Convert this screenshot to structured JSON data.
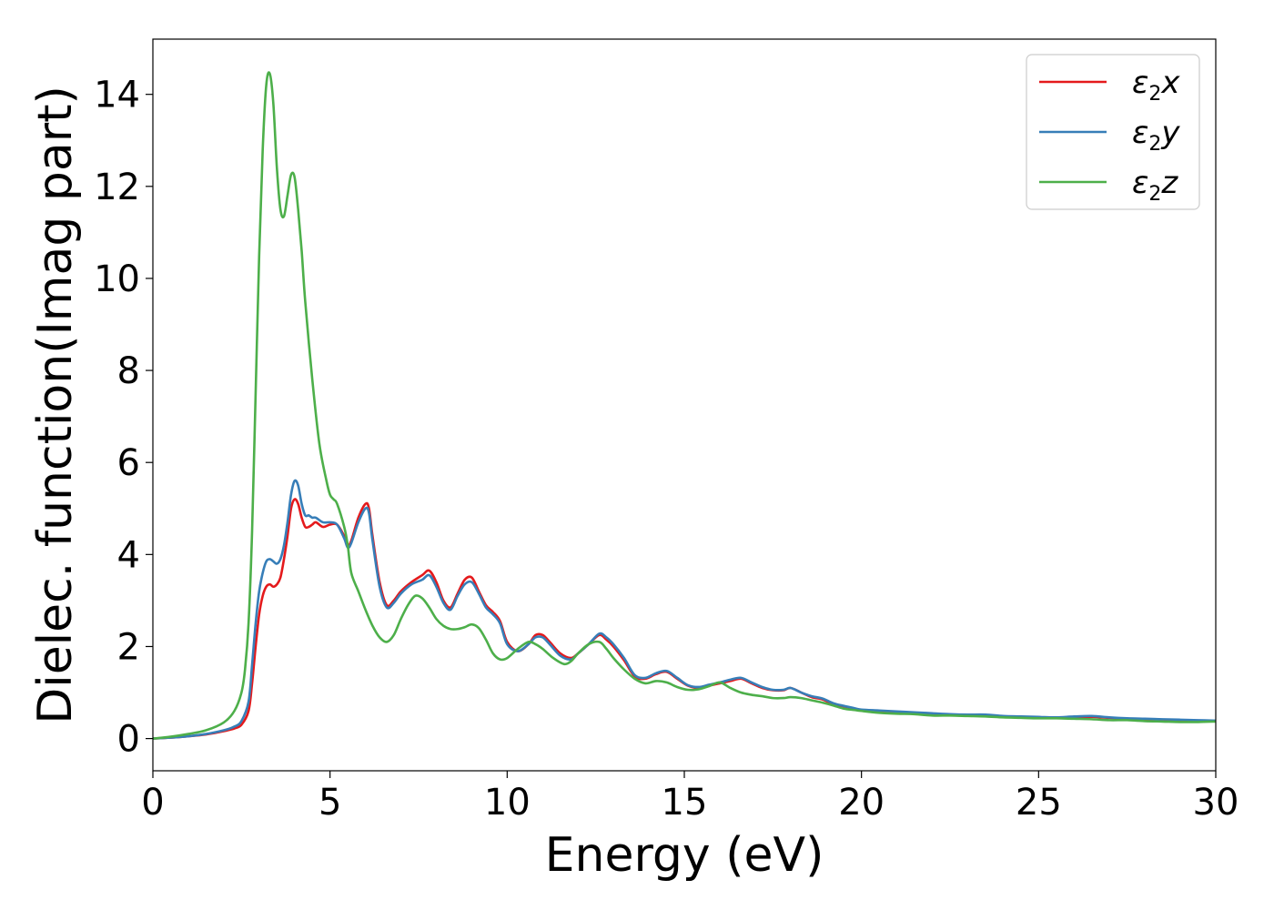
{
  "chart_data": {
    "type": "line",
    "xlabel": "Energy (eV)",
    "ylabel": "Dielec. function(Imag part)",
    "xlim": [
      0,
      30
    ],
    "ylim": [
      -0.7,
      15.2
    ],
    "xticks": [
      0,
      5,
      10,
      15,
      20,
      25,
      30
    ],
    "yticks": [
      0,
      2,
      4,
      6,
      8,
      10,
      12,
      14
    ],
    "grid": false,
    "legend_position": "top-right",
    "series": [
      {
        "name": "ε2x",
        "label_main": "ε",
        "label_sub": "2",
        "label_tail": "x",
        "color": "#e41a1c",
        "x": [
          0,
          0.5,
          1.0,
          1.5,
          2.0,
          2.3,
          2.5,
          2.7,
          2.8,
          2.9,
          3.0,
          3.1,
          3.2,
          3.3,
          3.4,
          3.5,
          3.6,
          3.7,
          3.8,
          3.9,
          4.0,
          4.1,
          4.2,
          4.3,
          4.4,
          4.5,
          4.6,
          4.8,
          5.0,
          5.2,
          5.4,
          5.5,
          5.6,
          5.8,
          6.0,
          6.1,
          6.2,
          6.4,
          6.6,
          6.8,
          7.0,
          7.3,
          7.6,
          7.8,
          8.0,
          8.2,
          8.4,
          8.6,
          8.8,
          9.0,
          9.2,
          9.4,
          9.6,
          9.8,
          10.0,
          10.3,
          10.6,
          10.8,
          11.0,
          11.2,
          11.5,
          11.8,
          12.0,
          12.3,
          12.6,
          12.8,
          13.0,
          13.3,
          13.6,
          13.9,
          14.2,
          14.5,
          14.8,
          15.1,
          15.4,
          15.7,
          16.0,
          16.3,
          16.6,
          16.9,
          17.2,
          17.5,
          17.8,
          18.0,
          18.3,
          18.6,
          18.9,
          19.2,
          19.5,
          19.8,
          20.0,
          20.5,
          21.0,
          21.5,
          22.0,
          22.5,
          23.0,
          23.5,
          24.0,
          24.5,
          25.0,
          25.5,
          26.0,
          26.5,
          27.0,
          27.5,
          28.0,
          28.5,
          29.0,
          29.5,
          30.0
        ],
        "y": [
          0.0,
          0.02,
          0.05,
          0.09,
          0.16,
          0.22,
          0.3,
          0.6,
          1.2,
          2.0,
          2.7,
          3.1,
          3.3,
          3.35,
          3.3,
          3.35,
          3.5,
          3.9,
          4.4,
          5.0,
          5.2,
          5.1,
          4.8,
          4.6,
          4.6,
          4.65,
          4.7,
          4.6,
          4.65,
          4.65,
          4.4,
          4.2,
          4.3,
          4.8,
          5.1,
          5.0,
          4.4,
          3.4,
          2.9,
          3.0,
          3.2,
          3.4,
          3.55,
          3.65,
          3.4,
          3.0,
          2.85,
          3.15,
          3.45,
          3.5,
          3.2,
          2.9,
          2.75,
          2.55,
          2.1,
          1.9,
          2.05,
          2.25,
          2.25,
          2.1,
          1.85,
          1.75,
          1.85,
          2.05,
          2.25,
          2.15,
          2.0,
          1.7,
          1.35,
          1.3,
          1.4,
          1.45,
          1.3,
          1.15,
          1.1,
          1.15,
          1.2,
          1.25,
          1.3,
          1.2,
          1.1,
          1.05,
          1.05,
          1.1,
          1.0,
          0.9,
          0.85,
          0.75,
          0.7,
          0.65,
          0.62,
          0.6,
          0.58,
          0.56,
          0.54,
          0.52,
          0.5,
          0.5,
          0.48,
          0.47,
          0.46,
          0.45,
          0.46,
          0.47,
          0.45,
          0.43,
          0.42,
          0.41,
          0.4,
          0.39,
          0.38
        ]
      },
      {
        "name": "ε2y",
        "label_main": "ε",
        "label_sub": "2",
        "label_tail": "y",
        "color": "#377eb8",
        "x": [
          0,
          0.5,
          1.0,
          1.5,
          2.0,
          2.3,
          2.5,
          2.7,
          2.8,
          2.9,
          3.0,
          3.1,
          3.2,
          3.3,
          3.4,
          3.5,
          3.6,
          3.7,
          3.8,
          3.9,
          4.0,
          4.1,
          4.2,
          4.3,
          4.4,
          4.5,
          4.6,
          4.8,
          5.0,
          5.2,
          5.4,
          5.5,
          5.6,
          5.8,
          6.0,
          6.1,
          6.2,
          6.4,
          6.6,
          6.8,
          7.0,
          7.3,
          7.6,
          7.8,
          8.0,
          8.2,
          8.4,
          8.6,
          8.8,
          9.0,
          9.2,
          9.4,
          9.6,
          9.8,
          10.0,
          10.3,
          10.6,
          10.8,
          11.0,
          11.2,
          11.5,
          11.8,
          12.0,
          12.3,
          12.6,
          12.8,
          13.0,
          13.3,
          13.6,
          13.9,
          14.2,
          14.5,
          14.8,
          15.1,
          15.4,
          15.7,
          16.0,
          16.3,
          16.6,
          16.9,
          17.2,
          17.5,
          17.8,
          18.0,
          18.3,
          18.6,
          18.9,
          19.2,
          19.5,
          19.8,
          20.0,
          20.5,
          21.0,
          21.5,
          22.0,
          22.5,
          23.0,
          23.5,
          24.0,
          24.5,
          25.0,
          25.5,
          26.0,
          26.5,
          27.0,
          27.5,
          28.0,
          28.5,
          29.0,
          29.5,
          30.0
        ],
        "y": [
          0.0,
          0.02,
          0.05,
          0.1,
          0.18,
          0.26,
          0.38,
          0.8,
          1.6,
          2.5,
          3.2,
          3.6,
          3.85,
          3.9,
          3.85,
          3.8,
          3.9,
          4.2,
          4.7,
          5.3,
          5.6,
          5.5,
          5.1,
          4.85,
          4.85,
          4.8,
          4.8,
          4.7,
          4.7,
          4.65,
          4.35,
          4.15,
          4.25,
          4.7,
          5.0,
          4.9,
          4.3,
          3.3,
          2.85,
          2.95,
          3.15,
          3.35,
          3.45,
          3.55,
          3.3,
          2.95,
          2.8,
          3.1,
          3.35,
          3.4,
          3.15,
          2.85,
          2.7,
          2.5,
          2.05,
          1.9,
          2.05,
          2.2,
          2.2,
          2.05,
          1.8,
          1.72,
          1.85,
          2.05,
          2.28,
          2.2,
          2.05,
          1.75,
          1.38,
          1.32,
          1.42,
          1.47,
          1.32,
          1.16,
          1.12,
          1.17,
          1.22,
          1.28,
          1.32,
          1.22,
          1.12,
          1.06,
          1.06,
          1.1,
          1.0,
          0.92,
          0.87,
          0.77,
          0.71,
          0.66,
          0.63,
          0.61,
          0.59,
          0.57,
          0.55,
          0.53,
          0.52,
          0.52,
          0.49,
          0.48,
          0.47,
          0.46,
          0.48,
          0.49,
          0.46,
          0.44,
          0.43,
          0.42,
          0.41,
          0.4,
          0.39
        ]
      },
      {
        "name": "ε2z",
        "label_main": "ε",
        "label_sub": "2",
        "label_tail": "z",
        "color": "#4daf4a",
        "x": [
          0,
          0.5,
          1.0,
          1.5,
          2.0,
          2.3,
          2.5,
          2.6,
          2.7,
          2.8,
          2.9,
          3.0,
          3.1,
          3.2,
          3.3,
          3.4,
          3.5,
          3.6,
          3.7,
          3.8,
          3.9,
          4.0,
          4.1,
          4.2,
          4.3,
          4.5,
          4.7,
          4.9,
          5.0,
          5.1,
          5.2,
          5.4,
          5.5,
          5.6,
          5.8,
          6.0,
          6.2,
          6.4,
          6.6,
          6.8,
          7.0,
          7.2,
          7.4,
          7.6,
          7.8,
          8.0,
          8.2,
          8.4,
          8.6,
          8.8,
          9.0,
          9.2,
          9.4,
          9.6,
          9.8,
          10.0,
          10.3,
          10.6,
          10.8,
          11.0,
          11.3,
          11.6,
          11.8,
          12.0,
          12.3,
          12.6,
          12.8,
          13.0,
          13.3,
          13.6,
          13.9,
          14.2,
          14.5,
          14.8,
          15.1,
          15.4,
          15.7,
          16.0,
          16.3,
          16.6,
          16.9,
          17.2,
          17.5,
          17.8,
          18.0,
          18.3,
          18.6,
          18.9,
          19.2,
          19.5,
          19.8,
          20.0,
          20.5,
          21.0,
          21.5,
          22.0,
          22.5,
          23.0,
          23.5,
          24.0,
          24.5,
          25.0,
          25.5,
          26.0,
          26.5,
          27.0,
          27.5,
          28.0,
          28.5,
          29.0,
          29.5,
          30.0
        ],
        "y": [
          0.0,
          0.04,
          0.1,
          0.18,
          0.35,
          0.6,
          1.0,
          1.5,
          2.5,
          4.5,
          7.5,
          10.5,
          12.8,
          14.2,
          14.45,
          13.8,
          12.4,
          11.5,
          11.35,
          11.8,
          12.25,
          12.2,
          11.5,
          10.6,
          9.5,
          7.8,
          6.4,
          5.6,
          5.3,
          5.2,
          5.1,
          4.6,
          4.2,
          3.6,
          3.2,
          2.8,
          2.45,
          2.2,
          2.1,
          2.25,
          2.6,
          2.9,
          3.1,
          3.05,
          2.85,
          2.6,
          2.45,
          2.38,
          2.38,
          2.42,
          2.48,
          2.4,
          2.15,
          1.85,
          1.72,
          1.75,
          1.95,
          2.1,
          2.05,
          1.95,
          1.75,
          1.62,
          1.68,
          1.85,
          2.05,
          2.1,
          1.95,
          1.75,
          1.5,
          1.3,
          1.2,
          1.25,
          1.22,
          1.12,
          1.06,
          1.07,
          1.14,
          1.22,
          1.1,
          1.0,
          0.95,
          0.92,
          0.88,
          0.88,
          0.9,
          0.88,
          0.83,
          0.78,
          0.72,
          0.65,
          0.62,
          0.6,
          0.56,
          0.54,
          0.53,
          0.5,
          0.5,
          0.49,
          0.48,
          0.46,
          0.45,
          0.44,
          0.44,
          0.43,
          0.42,
          0.4,
          0.4,
          0.38,
          0.37,
          0.36,
          0.36,
          0.37
        ]
      }
    ]
  }
}
